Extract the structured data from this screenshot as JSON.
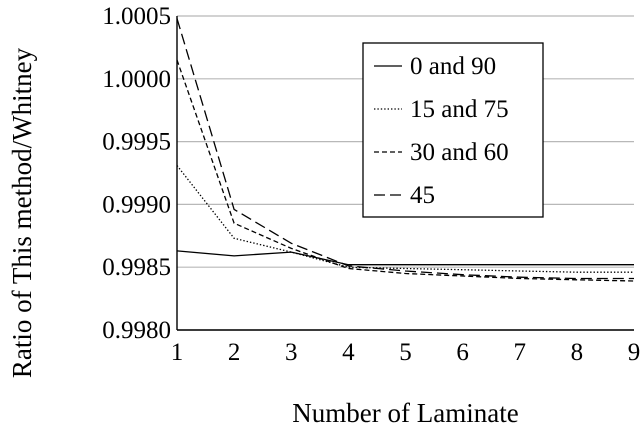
{
  "chart_data": {
    "type": "line",
    "title": "",
    "xlabel": "Number of Laminate",
    "ylabel": "Ratio of This method/Whitney",
    "x": [
      1,
      2,
      3,
      4,
      5,
      6,
      7,
      8,
      9
    ],
    "xlim": [
      1,
      9
    ],
    "ylim": [
      0.998,
      1.0005
    ],
    "y_ticks": [
      "0.9980",
      "0.9985",
      "0.9990",
      "0.9995",
      "1.0000",
      "1.0005"
    ],
    "x_ticks": [
      "1",
      "2",
      "3",
      "4",
      "5",
      "6",
      "7",
      "8",
      "9"
    ],
    "grid": "horizontal",
    "legend_position": "top-right",
    "series": [
      {
        "name": "0 and 90",
        "style": "solid",
        "color": "#000000",
        "values": [
          0.99863,
          0.99859,
          0.99862,
          0.99852,
          0.99852,
          0.99852,
          0.99852,
          0.99852,
          0.99852
        ]
      },
      {
        "name": "15 and 75",
        "style": "dotted",
        "color": "#000000",
        "values": [
          0.99931,
          0.99873,
          0.99862,
          0.9985,
          0.99849,
          0.99848,
          0.99847,
          0.99846,
          0.99846
        ]
      },
      {
        "name": "30 and 60",
        "style": "short-dash",
        "color": "#000000",
        "values": [
          1.00015,
          0.99885,
          0.99865,
          0.99849,
          0.99845,
          0.99843,
          0.99841,
          0.9984,
          0.99839
        ]
      },
      {
        "name": "45",
        "style": "long-dash",
        "color": "#000000",
        "values": [
          1.00048,
          0.99896,
          0.99869,
          0.99851,
          0.99847,
          0.99844,
          0.99842,
          0.99841,
          0.99841
        ]
      }
    ]
  }
}
